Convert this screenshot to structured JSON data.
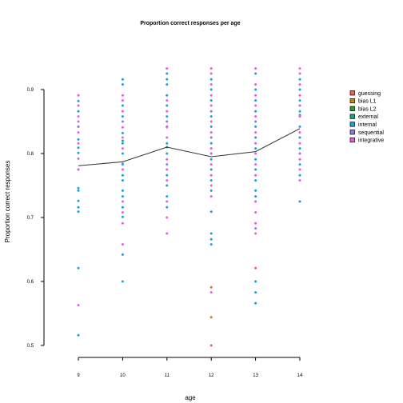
{
  "chart_data": {
    "type": "scatter",
    "title": "Proportion correct responses per age",
    "xlabel": "age",
    "ylabel": "Proportion correct responses",
    "x_categories": [
      "9",
      "10",
      "11",
      "12",
      "13",
      "14"
    ],
    "y_ticks": [
      "0.5",
      "0.6",
      "0.7",
      "0.8",
      "0.9"
    ],
    "ylim": [
      0.5,
      0.9
    ],
    "grid": false,
    "legend_position": "right",
    "legend": [
      {
        "name": "guessing",
        "color": "#e8635b"
      },
      {
        "name": "bias L1",
        "color": "#c08a1a"
      },
      {
        "name": "bias L2",
        "color": "#2aa02a"
      },
      {
        "name": "external",
        "color": "#1aa37a"
      },
      {
        "name": "internal",
        "color": "#16a3d8"
      },
      {
        "name": "sequential",
        "color": "#8a7be0"
      },
      {
        "name": "integrative",
        "color": "#e45fe0"
      }
    ],
    "mean_line": {
      "color": "#333333",
      "x": [
        "9",
        "10",
        "11",
        "12",
        "13",
        "14"
      ],
      "y": [
        0.781,
        0.787,
        0.81,
        0.795,
        0.803,
        0.839
      ]
    },
    "series": [
      {
        "name": "guessing",
        "points": [
          {
            "x": "12",
            "y": 0.5
          },
          {
            "x": "12",
            "y": 0.591
          },
          {
            "x": "13",
            "y": 0.621
          }
        ]
      },
      {
        "name": "bias L1",
        "points": [
          {
            "x": "12",
            "y": 0.544
          }
        ]
      },
      {
        "name": "bias L2",
        "points": []
      },
      {
        "name": "external",
        "points": [
          {
            "x": "10",
            "y": 0.82
          },
          {
            "x": "11",
            "y": 0.81
          },
          {
            "x": "12",
            "y": 0.8
          },
          {
            "x": "14",
            "y": 0.86
          }
        ]
      },
      {
        "name": "internal",
        "points": [
          {
            "x": "9",
            "y": 0.516
          },
          {
            "x": "9",
            "y": 0.621
          },
          {
            "x": "9",
            "y": 0.709
          },
          {
            "x": "9",
            "y": 0.716
          },
          {
            "x": "9",
            "y": 0.726
          },
          {
            "x": "9",
            "y": 0.742
          },
          {
            "x": "9",
            "y": 0.746
          },
          {
            "x": "9",
            "y": 0.775
          },
          {
            "x": "9",
            "y": 0.801
          },
          {
            "x": "9",
            "y": 0.809
          },
          {
            "x": "9",
            "y": 0.822
          },
          {
            "x": "9",
            "y": 0.842
          },
          {
            "x": "9",
            "y": 0.866
          },
          {
            "x": "9",
            "y": 0.882
          },
          {
            "x": "10",
            "y": 0.6
          },
          {
            "x": "10",
            "y": 0.642
          },
          {
            "x": "10",
            "y": 0.701
          },
          {
            "x": "10",
            "y": 0.716
          },
          {
            "x": "10",
            "y": 0.733
          },
          {
            "x": "10",
            "y": 0.742
          },
          {
            "x": "10",
            "y": 0.758
          },
          {
            "x": "10",
            "y": 0.766
          },
          {
            "x": "10",
            "y": 0.783
          },
          {
            "x": "10",
            "y": 0.8
          },
          {
            "x": "10",
            "y": 0.816
          },
          {
            "x": "10",
            "y": 0.832
          },
          {
            "x": "10",
            "y": 0.858
          },
          {
            "x": "10",
            "y": 0.875
          },
          {
            "x": "10",
            "y": 0.908
          },
          {
            "x": "10",
            "y": 0.916
          },
          {
            "x": "11",
            "y": 0.716
          },
          {
            "x": "11",
            "y": 0.733
          },
          {
            "x": "11",
            "y": 0.75
          },
          {
            "x": "11",
            "y": 0.766
          },
          {
            "x": "11",
            "y": 0.8
          },
          {
            "x": "11",
            "y": 0.816
          },
          {
            "x": "11",
            "y": 0.842
          },
          {
            "x": "11",
            "y": 0.858
          },
          {
            "x": "11",
            "y": 0.875
          },
          {
            "x": "11",
            "y": 0.891
          },
          {
            "x": "11",
            "y": 0.908
          },
          {
            "x": "11",
            "y": 0.916
          },
          {
            "x": "11",
            "y": 0.925
          },
          {
            "x": "12",
            "y": 0.658
          },
          {
            "x": "12",
            "y": 0.666
          },
          {
            "x": "12",
            "y": 0.675
          },
          {
            "x": "12",
            "y": 0.709
          },
          {
            "x": "12",
            "y": 0.742
          },
          {
            "x": "12",
            "y": 0.758
          },
          {
            "x": "12",
            "y": 0.775
          },
          {
            "x": "12",
            "y": 0.791
          },
          {
            "x": "12",
            "y": 0.816
          },
          {
            "x": "12",
            "y": 0.842
          },
          {
            "x": "12",
            "y": 0.858
          },
          {
            "x": "12",
            "y": 0.883
          },
          {
            "x": "12",
            "y": 0.9
          },
          {
            "x": "12",
            "y": 0.916
          },
          {
            "x": "13",
            "y": 0.566
          },
          {
            "x": "13",
            "y": 0.583
          },
          {
            "x": "13",
            "y": 0.6
          },
          {
            "x": "13",
            "y": 0.725
          },
          {
            "x": "13",
            "y": 0.733
          },
          {
            "x": "13",
            "y": 0.742
          },
          {
            "x": "13",
            "y": 0.758
          },
          {
            "x": "13",
            "y": 0.775
          },
          {
            "x": "13",
            "y": 0.791
          },
          {
            "x": "13",
            "y": 0.808
          },
          {
            "x": "13",
            "y": 0.825
          },
          {
            "x": "13",
            "y": 0.842
          },
          {
            "x": "13",
            "y": 0.866
          },
          {
            "x": "13",
            "y": 0.883
          },
          {
            "x": "13",
            "y": 0.9
          },
          {
            "x": "13",
            "y": 0.925
          },
          {
            "x": "14",
            "y": 0.725
          },
          {
            "x": "14",
            "y": 0.766
          },
          {
            "x": "14",
            "y": 0.783
          },
          {
            "x": "14",
            "y": 0.808
          },
          {
            "x": "14",
            "y": 0.825
          },
          {
            "x": "14",
            "y": 0.842
          },
          {
            "x": "14",
            "y": 0.866
          },
          {
            "x": "14",
            "y": 0.883
          },
          {
            "x": "14",
            "y": 0.9
          },
          {
            "x": "14",
            "y": 0.916
          }
        ]
      },
      {
        "name": "sequential",
        "points": [
          {
            "x": "9",
            "y": 0.775
          },
          {
            "x": "9",
            "y": 0.842
          },
          {
            "x": "10",
            "y": 0.784
          },
          {
            "x": "10",
            "y": 0.85
          },
          {
            "x": "11",
            "y": 0.783
          },
          {
            "x": "11",
            "y": 0.85
          },
          {
            "x": "12",
            "y": 0.825
          },
          {
            "x": "12",
            "y": 0.866
          },
          {
            "x": "13",
            "y": 0.683
          },
          {
            "x": "13",
            "y": 0.85
          },
          {
            "x": "14",
            "y": 0.8
          },
          {
            "x": "14",
            "y": 0.875
          }
        ]
      },
      {
        "name": "integrative",
        "points": [
          {
            "x": "9",
            "y": 0.563
          },
          {
            "x": "9",
            "y": 0.775
          },
          {
            "x": "9",
            "y": 0.792
          },
          {
            "x": "9",
            "y": 0.816
          },
          {
            "x": "9",
            "y": 0.833
          },
          {
            "x": "9",
            "y": 0.85
          },
          {
            "x": "9",
            "y": 0.858
          },
          {
            "x": "9",
            "y": 0.875
          },
          {
            "x": "9",
            "y": 0.891
          },
          {
            "x": "10",
            "y": 0.658
          },
          {
            "x": "10",
            "y": 0.691
          },
          {
            "x": "10",
            "y": 0.708
          },
          {
            "x": "10",
            "y": 0.725
          },
          {
            "x": "10",
            "y": 0.775
          },
          {
            "x": "10",
            "y": 0.808
          },
          {
            "x": "10",
            "y": 0.825
          },
          {
            "x": "10",
            "y": 0.841
          },
          {
            "x": "10",
            "y": 0.866
          },
          {
            "x": "10",
            "y": 0.883
          },
          {
            "x": "10",
            "y": 0.891
          },
          {
            "x": "11",
            "y": 0.675
          },
          {
            "x": "11",
            "y": 0.7
          },
          {
            "x": "11",
            "y": 0.725
          },
          {
            "x": "11",
            "y": 0.758
          },
          {
            "x": "11",
            "y": 0.775
          },
          {
            "x": "11",
            "y": 0.791
          },
          {
            "x": "11",
            "y": 0.825
          },
          {
            "x": "11",
            "y": 0.841
          },
          {
            "x": "11",
            "y": 0.866
          },
          {
            "x": "11",
            "y": 0.883
          },
          {
            "x": "11",
            "y": 0.933
          },
          {
            "x": "12",
            "y": 0.583
          },
          {
            "x": "12",
            "y": 0.733
          },
          {
            "x": "12",
            "y": 0.75
          },
          {
            "x": "12",
            "y": 0.766
          },
          {
            "x": "12",
            "y": 0.783
          },
          {
            "x": "12",
            "y": 0.8
          },
          {
            "x": "12",
            "y": 0.808
          },
          {
            "x": "12",
            "y": 0.833
          },
          {
            "x": "12",
            "y": 0.85
          },
          {
            "x": "12",
            "y": 0.875
          },
          {
            "x": "12",
            "y": 0.891
          },
          {
            "x": "12",
            "y": 0.908
          },
          {
            "x": "12",
            "y": 0.925
          },
          {
            "x": "12",
            "y": 0.933
          },
          {
            "x": "13",
            "y": 0.675
          },
          {
            "x": "13",
            "y": 0.691
          },
          {
            "x": "13",
            "y": 0.708
          },
          {
            "x": "13",
            "y": 0.725
          },
          {
            "x": "13",
            "y": 0.766
          },
          {
            "x": "13",
            "y": 0.783
          },
          {
            "x": "13",
            "y": 0.8
          },
          {
            "x": "13",
            "y": 0.816
          },
          {
            "x": "13",
            "y": 0.833
          },
          {
            "x": "13",
            "y": 0.858
          },
          {
            "x": "13",
            "y": 0.875
          },
          {
            "x": "13",
            "y": 0.891
          },
          {
            "x": "13",
            "y": 0.908
          },
          {
            "x": "13",
            "y": 0.933
          },
          {
            "x": "14",
            "y": 0.758
          },
          {
            "x": "14",
            "y": 0.775
          },
          {
            "x": "14",
            "y": 0.791
          },
          {
            "x": "14",
            "y": 0.816
          },
          {
            "x": "14",
            "y": 0.833
          },
          {
            "x": "14",
            "y": 0.858
          },
          {
            "x": "14",
            "y": 0.875
          },
          {
            "x": "14",
            "y": 0.891
          },
          {
            "x": "14",
            "y": 0.908
          },
          {
            "x": "14",
            "y": 0.925
          },
          {
            "x": "14",
            "y": 0.933
          }
        ]
      }
    ]
  }
}
